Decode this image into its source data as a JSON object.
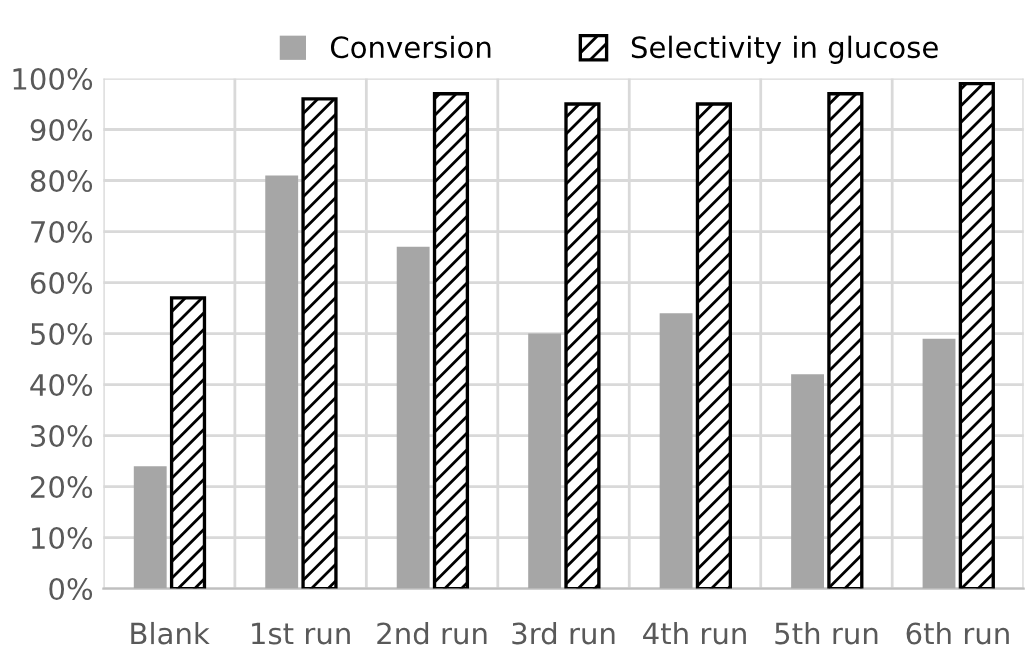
{
  "chart_data": {
    "type": "bar",
    "categories": [
      "Blank",
      "1st run",
      "2nd run",
      "3rd run",
      "4th run",
      "5th run",
      "6th run"
    ],
    "series": [
      {
        "name": "Conversion",
        "color": "#a6a6a6",
        "values": [
          24,
          81,
          67,
          50,
          54,
          42,
          49
        ]
      },
      {
        "name": "Selectivity in glucose",
        "color": "#000000",
        "values": [
          57,
          96,
          97,
          95,
          95,
          97,
          99
        ]
      }
    ],
    "ylim": [
      0,
      100
    ],
    "yticks": [
      {
        "value": 0,
        "label": "0%"
      },
      {
        "value": 10,
        "label": "10%"
      },
      {
        "value": 20,
        "label": "20%"
      },
      {
        "value": 30,
        "label": "30%"
      },
      {
        "value": 40,
        "label": "40%"
      },
      {
        "value": 50,
        "label": "50%"
      },
      {
        "value": 60,
        "label": "60%"
      },
      {
        "value": 70,
        "label": "70%"
      },
      {
        "value": 80,
        "label": "80%"
      },
      {
        "value": 90,
        "label": "90%"
      },
      {
        "value": 100,
        "label": "100%"
      }
    ],
    "grid": true,
    "legend": "top"
  }
}
